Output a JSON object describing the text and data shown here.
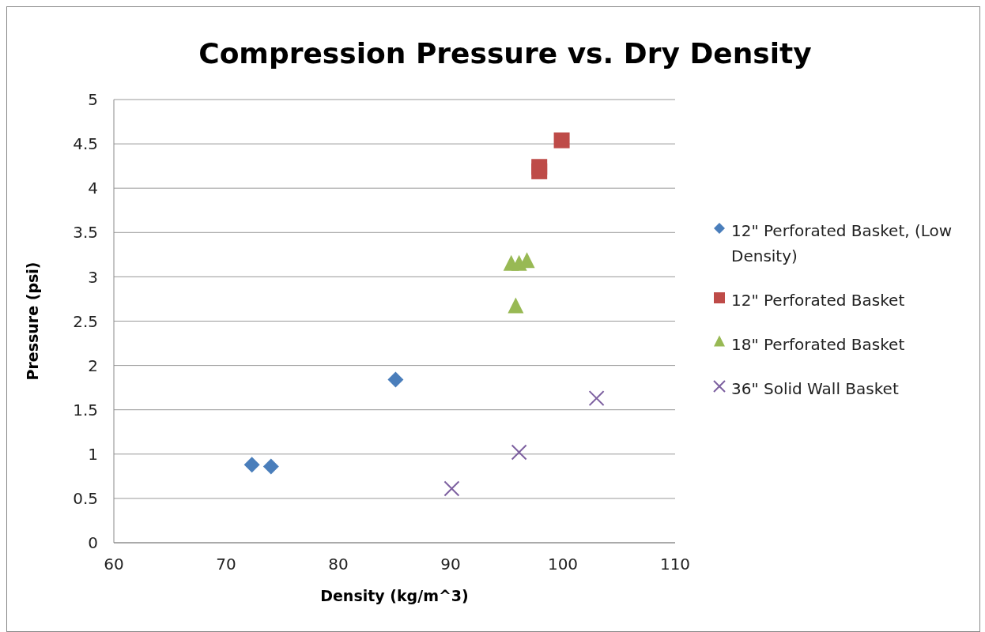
{
  "chart_data": {
    "type": "scatter",
    "title": "Compression Pressure vs. Dry Density",
    "xlabel": "Density (kg/m^3)",
    "ylabel": "Pressure (psi)",
    "xlim": [
      60,
      110
    ],
    "xticks": [
      60,
      70,
      80,
      90,
      100,
      110
    ],
    "ylim": [
      0,
      5
    ],
    "yticks": [
      0,
      0.5,
      1,
      1.5,
      2,
      2.5,
      3,
      3.5,
      4,
      4.5,
      5
    ],
    "grid": "y",
    "legend": "right",
    "series": [
      {
        "name": "12\" Perforated Basket, (Low Density)",
        "color": "#4a7ebb",
        "marker": "diamond",
        "x": [
          72.3,
          74.0,
          85.1
        ],
        "values": [
          0.88,
          0.86,
          1.84
        ]
      },
      {
        "name": "12\" Perforated Basket",
        "color": "#be4b48",
        "marker": "square",
        "x": [
          97.9,
          97.9,
          99.9
        ],
        "values": [
          4.24,
          4.19,
          4.54
        ]
      },
      {
        "name": "18\" Perforated Basket",
        "color": "#98b954",
        "marker": "triangle",
        "x": [
          95.4,
          96.1,
          96.8,
          95.8
        ],
        "values": [
          3.14,
          3.14,
          3.17,
          2.66
        ]
      },
      {
        "name": "36\" Solid Wall Basket",
        "color": "#7d60a0",
        "marker": "cross",
        "x": [
          90.1,
          96.1,
          103.0
        ],
        "values": [
          0.61,
          1.02,
          1.63
        ]
      }
    ]
  }
}
